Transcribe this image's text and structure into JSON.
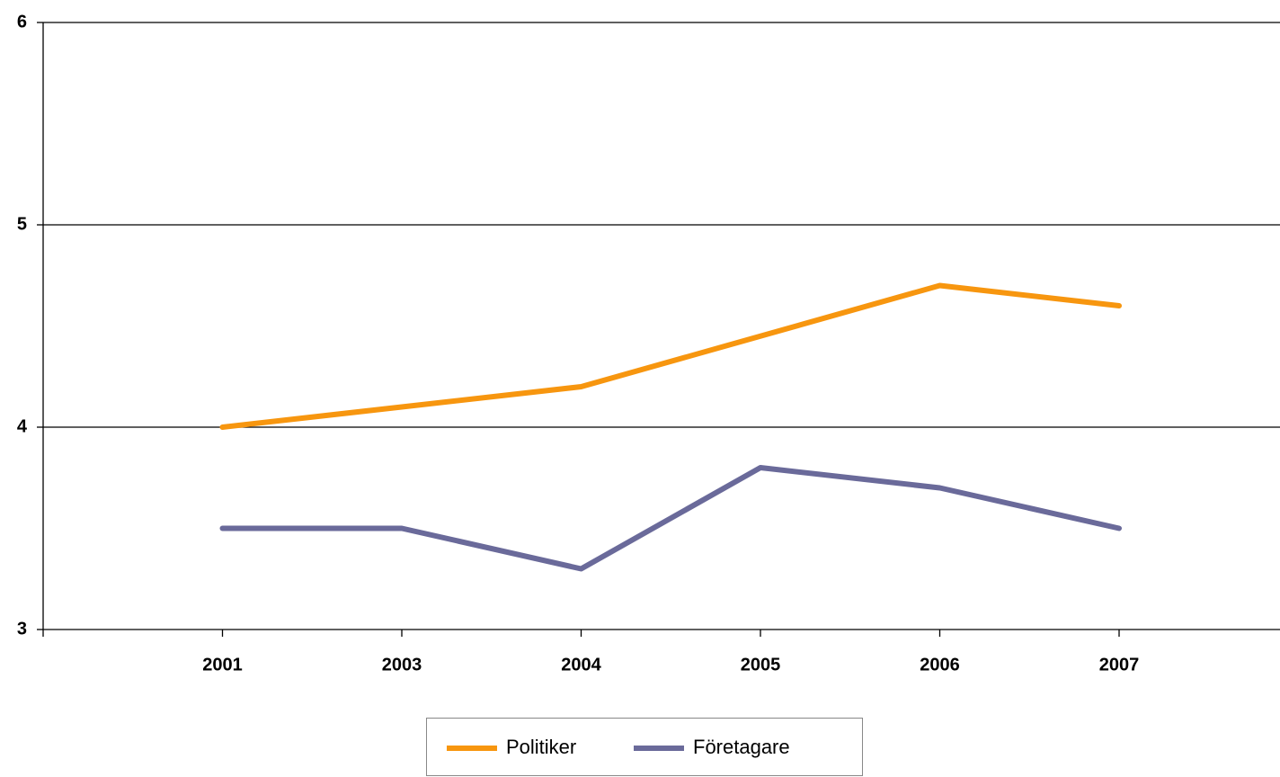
{
  "chart_data": {
    "type": "line",
    "categories": [
      "2001",
      "2003",
      "2004",
      "2005",
      "2006",
      "2007"
    ],
    "series": [
      {
        "name": "Politiker",
        "color": "#f7960f",
        "values": [
          4.0,
          4.1,
          4.2,
          4.45,
          4.7,
          4.6
        ]
      },
      {
        "name": "Företagare",
        "color": "#6a6a9a",
        "values": [
          3.5,
          3.5,
          3.3,
          3.8,
          3.7,
          3.5
        ]
      }
    ],
    "ylim": [
      3,
      6
    ],
    "yticks": [
      3,
      4,
      5,
      6
    ],
    "grid": true,
    "legend": "bottom"
  }
}
